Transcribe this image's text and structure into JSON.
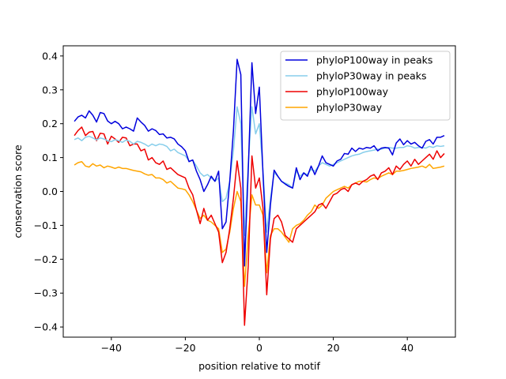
{
  "chart_data": {
    "type": "line",
    "xlabel": "position relative to motif",
    "ylabel": "conservation score",
    "xlim": [
      -53,
      53
    ],
    "ylim": [
      -0.43,
      0.43
    ],
    "xticks": [
      -40,
      -20,
      0,
      20,
      40
    ],
    "xtick_labels": [
      "−40",
      "−20",
      "0",
      "20",
      "40"
    ],
    "yticks": [
      -0.4,
      -0.3,
      -0.2,
      -0.1,
      0.0,
      0.1,
      0.2,
      0.3,
      0.4
    ],
    "ytick_labels": [
      "−0.4",
      "−0.3",
      "−0.2",
      "−0.1",
      "0.0",
      "0.1",
      "0.2",
      "0.3",
      "0.4"
    ],
    "grid": false,
    "legend_position": "top-right",
    "x": [
      -50,
      -49,
      -48,
      -47,
      -46,
      -45,
      -44,
      -43,
      -42,
      -41,
      -40,
      -39,
      -38,
      -37,
      -36,
      -35,
      -34,
      -33,
      -32,
      -31,
      -30,
      -29,
      -28,
      -27,
      -26,
      -25,
      -24,
      -23,
      -22,
      -21,
      -20,
      -19,
      -18,
      -17,
      -16,
      -15,
      -14,
      -13,
      -12,
      -11,
      -10,
      -9,
      -8,
      -7,
      -6,
      -5,
      -4,
      -3,
      -2,
      -1,
      0,
      1,
      2,
      3,
      4,
      5,
      6,
      7,
      8,
      9,
      10,
      11,
      12,
      13,
      14,
      15,
      16,
      17,
      18,
      19,
      20,
      21,
      22,
      23,
      24,
      25,
      26,
      27,
      28,
      29,
      30,
      31,
      32,
      33,
      34,
      35,
      36,
      37,
      38,
      39,
      40,
      41,
      42,
      43,
      44,
      45,
      46,
      47,
      48,
      49,
      50
    ],
    "series": [
      {
        "name": "phyloP100way in peaks",
        "color": "#0000dd",
        "values": [
          0.207,
          0.22,
          0.225,
          0.217,
          0.238,
          0.225,
          0.205,
          0.233,
          0.23,
          0.208,
          0.2,
          0.207,
          0.2,
          0.185,
          0.19,
          0.185,
          0.178,
          0.217,
          0.205,
          0.195,
          0.178,
          0.185,
          0.18,
          0.168,
          0.17,
          0.158,
          0.16,
          0.155,
          0.14,
          0.132,
          0.12,
          0.088,
          0.093,
          0.06,
          0.035,
          0.0,
          0.02,
          0.045,
          0.03,
          0.06,
          -0.11,
          -0.09,
          0.03,
          0.18,
          0.39,
          0.345,
          -0.22,
          0.06,
          0.38,
          0.23,
          0.308,
          0.05,
          -0.18,
          -0.04,
          0.063,
          0.045,
          0.03,
          0.022,
          0.015,
          0.01,
          0.07,
          0.035,
          0.055,
          0.045,
          0.075,
          0.05,
          0.075,
          0.105,
          0.085,
          0.08,
          0.075,
          0.09,
          0.095,
          0.112,
          0.11,
          0.128,
          0.118,
          0.128,
          0.125,
          0.13,
          0.128,
          0.135,
          0.12,
          0.128,
          0.13,
          0.128,
          0.108,
          0.143,
          0.155,
          0.138,
          0.15,
          0.14,
          0.145,
          0.135,
          0.128,
          0.148,
          0.153,
          0.14,
          0.16,
          0.16,
          0.165
        ]
      },
      {
        "name": "phyloP30way in peaks",
        "color": "#87ceeb",
        "values": [
          0.153,
          0.158,
          0.15,
          0.16,
          0.163,
          0.158,
          0.152,
          0.158,
          0.155,
          0.15,
          0.147,
          0.153,
          0.15,
          0.145,
          0.152,
          0.148,
          0.14,
          0.148,
          0.145,
          0.14,
          0.133,
          0.14,
          0.135,
          0.14,
          0.138,
          0.133,
          0.12,
          0.125,
          0.115,
          0.11,
          0.105,
          0.09,
          0.092,
          0.075,
          0.055,
          0.045,
          0.05,
          0.04,
          0.03,
          0.04,
          -0.03,
          -0.02,
          0.03,
          0.12,
          0.25,
          0.2,
          -0.13,
          0.08,
          0.25,
          0.17,
          0.2,
          0.06,
          -0.12,
          -0.02,
          0.055,
          0.045,
          0.03,
          0.025,
          0.02,
          0.01,
          0.06,
          0.045,
          0.055,
          0.05,
          0.065,
          0.06,
          0.075,
          0.085,
          0.08,
          0.075,
          0.08,
          0.085,
          0.09,
          0.095,
          0.1,
          0.105,
          0.108,
          0.11,
          0.115,
          0.118,
          0.12,
          0.122,
          0.125,
          0.125,
          0.128,
          0.13,
          0.128,
          0.128,
          0.13,
          0.13,
          0.135,
          0.133,
          0.128,
          0.13,
          0.13,
          0.128,
          0.133,
          0.13,
          0.135,
          0.133,
          0.135
        ]
      },
      {
        "name": "phyloP100way",
        "color": "#ee0000",
        "values": [
          0.165,
          0.18,
          0.19,
          0.165,
          0.175,
          0.177,
          0.15,
          0.172,
          0.17,
          0.14,
          0.163,
          0.155,
          0.145,
          0.16,
          0.158,
          0.135,
          0.14,
          0.14,
          0.12,
          0.125,
          0.093,
          0.1,
          0.085,
          0.08,
          0.09,
          0.065,
          0.07,
          0.06,
          0.05,
          0.045,
          0.04,
          0.01,
          -0.01,
          -0.055,
          -0.095,
          -0.05,
          -0.085,
          -0.07,
          -0.095,
          -0.12,
          -0.21,
          -0.18,
          -0.11,
          -0.02,
          0.09,
          0.01,
          -0.395,
          -0.22,
          0.105,
          0.01,
          0.04,
          -0.05,
          -0.305,
          -0.14,
          -0.08,
          -0.07,
          -0.09,
          -0.13,
          -0.14,
          -0.15,
          -0.11,
          -0.1,
          -0.09,
          -0.08,
          -0.07,
          -0.06,
          -0.04,
          -0.035,
          -0.05,
          -0.03,
          -0.01,
          -0.005,
          0.005,
          0.01,
          0.0,
          0.02,
          0.025,
          0.02,
          0.03,
          0.035,
          0.045,
          0.05,
          0.035,
          0.055,
          0.06,
          0.07,
          0.05,
          0.075,
          0.065,
          0.08,
          0.09,
          0.075,
          0.095,
          0.08,
          0.09,
          0.1,
          0.11,
          0.095,
          0.12,
          0.1,
          0.112
        ]
      },
      {
        "name": "phyloP30way",
        "color": "#ffa500",
        "values": [
          0.078,
          0.085,
          0.088,
          0.075,
          0.072,
          0.082,
          0.075,
          0.078,
          0.07,
          0.075,
          0.072,
          0.068,
          0.072,
          0.068,
          0.068,
          0.065,
          0.062,
          0.06,
          0.058,
          0.052,
          0.048,
          0.05,
          0.04,
          0.04,
          0.035,
          0.025,
          0.03,
          0.02,
          0.01,
          0.008,
          0.005,
          -0.01,
          -0.03,
          -0.055,
          -0.08,
          -0.07,
          -0.085,
          -0.09,
          -0.1,
          -0.11,
          -0.18,
          -0.17,
          -0.12,
          -0.05,
          0.0,
          -0.03,
          -0.28,
          -0.13,
          -0.01,
          -0.04,
          -0.04,
          -0.07,
          -0.24,
          -0.13,
          -0.11,
          -0.11,
          -0.12,
          -0.135,
          -0.15,
          -0.11,
          -0.1,
          -0.095,
          -0.085,
          -0.07,
          -0.06,
          -0.04,
          -0.05,
          -0.04,
          -0.02,
          -0.01,
          0.0,
          0.005,
          0.01,
          0.015,
          0.01,
          0.02,
          0.025,
          0.03,
          0.03,
          0.028,
          0.035,
          0.04,
          0.038,
          0.045,
          0.05,
          0.055,
          0.05,
          0.06,
          0.06,
          0.062,
          0.065,
          0.068,
          0.07,
          0.072,
          0.075,
          0.07,
          0.08,
          0.068,
          0.07,
          0.072,
          0.075
        ]
      }
    ]
  }
}
